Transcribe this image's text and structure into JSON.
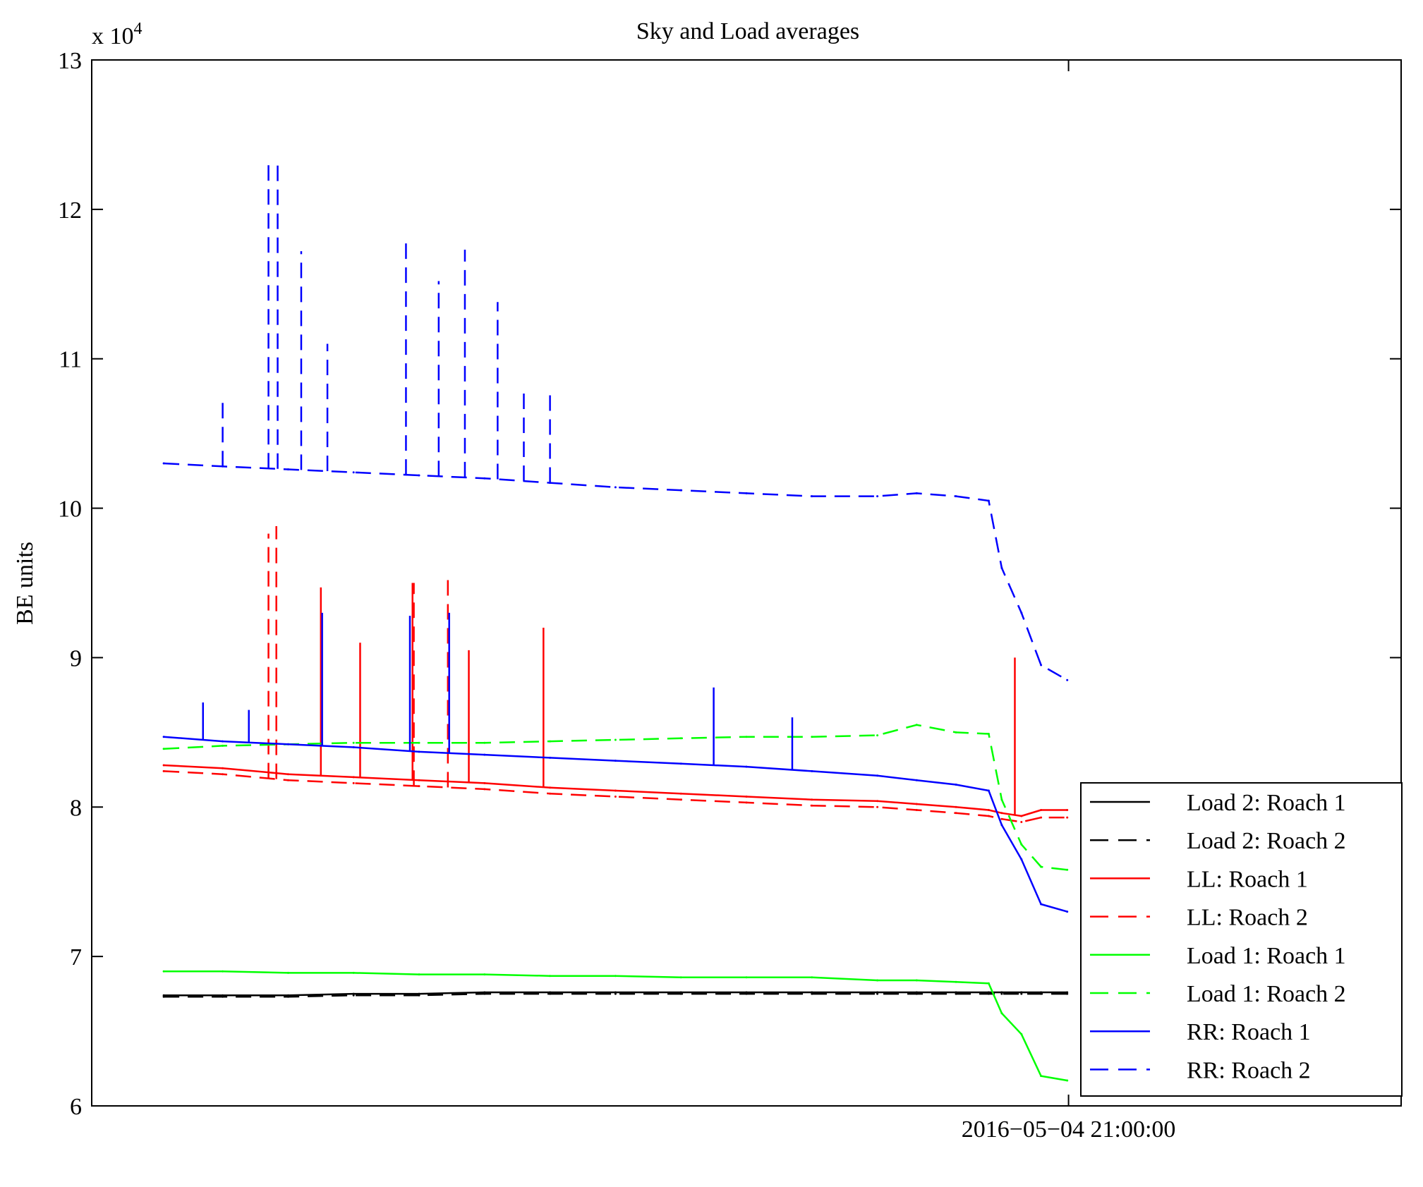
{
  "chart_data": {
    "type": "line",
    "title": "Sky and Load averages",
    "xlabel": "",
    "ylabel": "BE units",
    "y_multiplier": "x 10",
    "y_multiplier_exponent": "4",
    "ylim": [
      6,
      13
    ],
    "yticks": [
      6,
      7,
      8,
      9,
      10,
      11,
      12,
      13
    ],
    "xlim": [
      0,
      100
    ],
    "xtick_value": 74.6,
    "xtick_label": "2016−05−04 21:00:00",
    "grid": false,
    "legend_position": "bottom-right",
    "x": [
      5.5,
      10,
      15,
      20,
      25,
      30,
      35,
      40,
      45,
      50,
      55,
      60,
      63,
      66,
      68.5,
      69.5,
      71,
      72.5,
      74.5
    ],
    "series": [
      {
        "name": "Load 2: Roach 1",
        "color": "#000000",
        "dash": "solid",
        "values": [
          6.74,
          6.74,
          6.74,
          6.75,
          6.75,
          6.76,
          6.76,
          6.76,
          6.76,
          6.76,
          6.76,
          6.76,
          6.76,
          6.76,
          6.76,
          6.76,
          6.76,
          6.76,
          6.76
        ],
        "spikes": []
      },
      {
        "name": "Load 2: Roach 2",
        "color": "#000000",
        "dash": "dashed",
        "values": [
          6.73,
          6.73,
          6.73,
          6.74,
          6.74,
          6.75,
          6.75,
          6.75,
          6.75,
          6.75,
          6.75,
          6.75,
          6.75,
          6.75,
          6.75,
          6.75,
          6.75,
          6.75,
          6.75
        ],
        "spikes": []
      },
      {
        "name": "LL: Roach 1",
        "color": "#ff0000",
        "dash": "solid",
        "values": [
          8.28,
          8.26,
          8.22,
          8.2,
          8.18,
          8.16,
          8.13,
          8.11,
          8.09,
          8.07,
          8.05,
          8.04,
          8.02,
          8.0,
          7.98,
          7.96,
          7.94,
          7.98,
          7.98
        ],
        "spikes": [
          [
            17.5,
            9.47
          ],
          [
            20.5,
            9.1
          ],
          [
            24.5,
            9.5
          ],
          [
            28.8,
            9.05
          ],
          [
            34.5,
            9.2
          ],
          [
            70.5,
            9.0
          ]
        ]
      },
      {
        "name": "LL: Roach 2",
        "color": "#ff0000",
        "dash": "dashed",
        "values": [
          8.24,
          8.22,
          8.18,
          8.16,
          8.14,
          8.12,
          8.09,
          8.07,
          8.05,
          8.03,
          8.01,
          8.0,
          7.98,
          7.96,
          7.94,
          7.92,
          7.9,
          7.93,
          7.93
        ],
        "spikes": [
          [
            13.5,
            9.83
          ],
          [
            14.1,
            9.88
          ],
          [
            24.6,
            9.5
          ],
          [
            27.2,
            9.52
          ]
        ]
      },
      {
        "name": "Load 1: Roach 1",
        "color": "#00ff00",
        "dash": "solid",
        "values": [
          6.9,
          6.9,
          6.89,
          6.89,
          6.88,
          6.88,
          6.87,
          6.87,
          6.86,
          6.86,
          6.86,
          6.84,
          6.84,
          6.83,
          6.82,
          6.62,
          6.48,
          6.2,
          6.17
        ],
        "spikes": []
      },
      {
        "name": "Load 1: Roach 2",
        "color": "#00ff00",
        "dash": "dashed",
        "values": [
          8.39,
          8.41,
          8.42,
          8.43,
          8.43,
          8.43,
          8.44,
          8.45,
          8.46,
          8.47,
          8.47,
          8.48,
          8.55,
          8.5,
          8.49,
          8.05,
          7.75,
          7.6,
          7.58
        ],
        "spikes": []
      },
      {
        "name": "RR: Roach 1",
        "color": "#0000ff",
        "dash": "solid",
        "values": [
          8.47,
          8.44,
          8.42,
          8.4,
          8.37,
          8.35,
          8.33,
          8.31,
          8.29,
          8.27,
          8.24,
          8.21,
          8.18,
          8.15,
          8.11,
          7.88,
          7.65,
          7.35,
          7.3
        ],
        "spikes": [
          [
            8.5,
            8.7
          ],
          [
            12,
            8.65
          ],
          [
            17.6,
            9.3
          ],
          [
            24.3,
            9.28
          ],
          [
            27.3,
            9.3
          ],
          [
            47.5,
            8.8
          ],
          [
            53.5,
            8.6
          ]
        ]
      },
      {
        "name": "RR: Roach 2",
        "color": "#0000ff",
        "dash": "dashed",
        "values": [
          10.3,
          10.28,
          10.26,
          10.24,
          10.22,
          10.2,
          10.17,
          10.14,
          10.12,
          10.1,
          10.08,
          10.08,
          10.1,
          10.08,
          10.05,
          9.6,
          9.3,
          8.95,
          8.85
        ],
        "spikes": [
          [
            10,
            10.75
          ],
          [
            13.5,
            12.32
          ],
          [
            14.2,
            12.3
          ],
          [
            16,
            11.72
          ],
          [
            18,
            11.1
          ],
          [
            24,
            11.8
          ],
          [
            26.5,
            11.52
          ],
          [
            28.5,
            11.73
          ],
          [
            31,
            11.38
          ],
          [
            33,
            10.8
          ],
          [
            35,
            10.8
          ]
        ]
      }
    ]
  }
}
